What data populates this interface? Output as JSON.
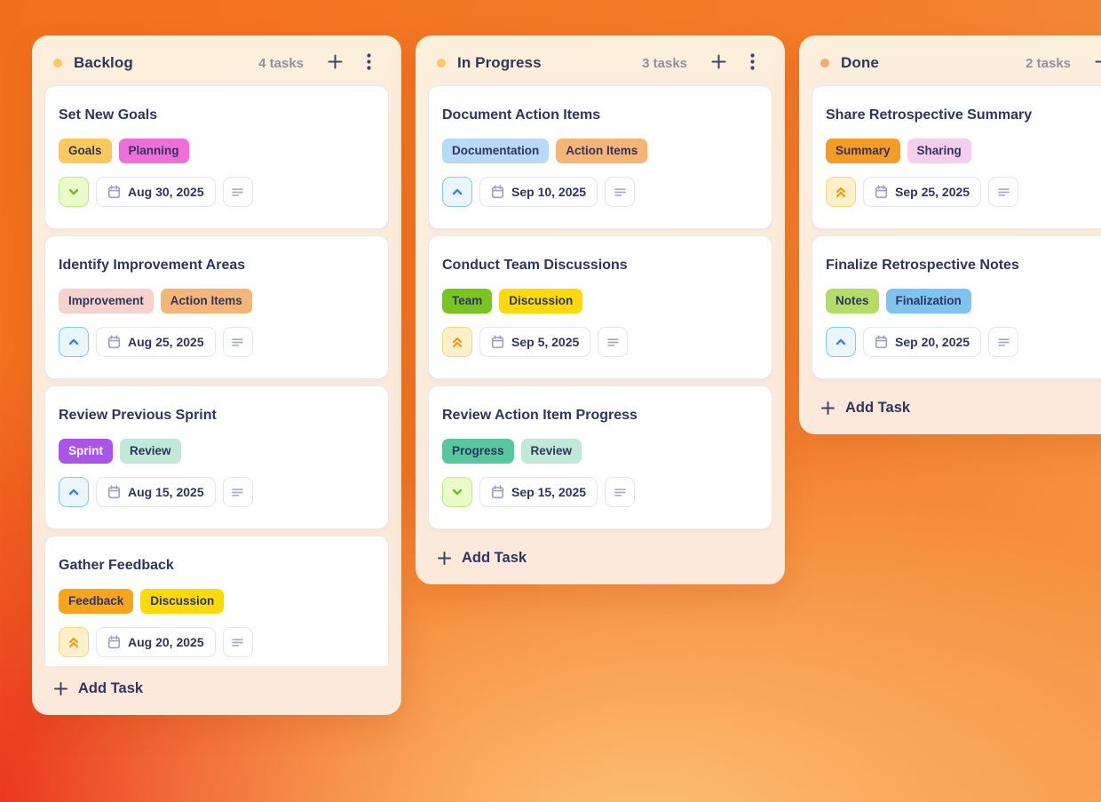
{
  "theme": {
    "background_orange": "#f26f1d",
    "background_red": "#e92f20",
    "background_light": "#fdc67d",
    "column_bg": "#fcefdc",
    "card_bg": "#ffffff",
    "text_navy": "#2e3560",
    "text_muted": "#8c91a9"
  },
  "icons": {
    "column_dot": "status-dot",
    "add_card": "plus-icon",
    "column_menu": "kebab-menu-icon",
    "calendar": "calendar-icon",
    "notes": "notes-lines-icon",
    "priority_low": "chevron-down-icon",
    "priority_medium": "chevron-up-icon",
    "priority_high": "double-chevron-up-icon",
    "add_task": "plus-icon"
  },
  "board": {
    "add_task_label": "Add Task",
    "priority_styles": {
      "low": {
        "bg": "#eafbca",
        "border": "#bdec79",
        "icon": "#76b81c"
      },
      "medium": {
        "bg": "#e9f6fe",
        "border": "#81cbf7",
        "icon": "#3f7df6"
      },
      "high": {
        "bg": "#fdf0cb",
        "border": "#f9d57c",
        "icon": "#f29a0c"
      }
    },
    "columns": [
      {
        "id": "backlog",
        "title": "Backlog",
        "count": "4 tasks",
        "dot_color": "#f8c964",
        "tasks": [
          {
            "title": "Set New Goals",
            "tags": [
              {
                "label": "Goals",
                "bg": "#f9c95e",
                "fg": "#2e3560"
              },
              {
                "label": "Planning",
                "bg": "#ee6fd8",
                "fg": "#2e3560"
              }
            ],
            "priority": "low",
            "due": "Aug 30, 2025"
          },
          {
            "title": "Identify Improvement Areas",
            "tags": [
              {
                "label": "Improvement",
                "bg": "#f7d2ca",
                "fg": "#2e3560"
              },
              {
                "label": "Action Items",
                "bg": "#f5b577",
                "fg": "#2e3560"
              }
            ],
            "priority": "medium",
            "due": "Aug 25, 2025"
          },
          {
            "title": "Review Previous Sprint",
            "tags": [
              {
                "label": "Sprint",
                "bg": "#a855e8",
                "fg": "#ffffff"
              },
              {
                "label": "Review",
                "bg": "#c0e9d9",
                "fg": "#2e3560"
              }
            ],
            "priority": "medium",
            "due": "Aug 15, 2025"
          },
          {
            "title": "Gather Feedback",
            "tags": [
              {
                "label": "Feedback",
                "bg": "#f9a41c",
                "fg": "#2e3560"
              },
              {
                "label": "Discussion",
                "bg": "#fbd90c",
                "fg": "#2e3560"
              }
            ],
            "priority": "high",
            "due": "Aug 20, 2025"
          }
        ]
      },
      {
        "id": "in-progress",
        "title": "In Progress",
        "count": "3 tasks",
        "dot_color": "#f8c964",
        "tasks": [
          {
            "title": "Document Action Items",
            "tags": [
              {
                "label": "Documentation",
                "bg": "#b7daf8",
                "fg": "#2e3560"
              },
              {
                "label": "Action Items",
                "bg": "#f5b577",
                "fg": "#2e3560"
              }
            ],
            "priority": "medium",
            "due": "Sep 10, 2025"
          },
          {
            "title": "Conduct Team Discussions",
            "tags": [
              {
                "label": "Team",
                "bg": "#7ac41f",
                "fg": "#2e3560"
              },
              {
                "label": "Discussion",
                "bg": "#fbd90c",
                "fg": "#2e3560"
              }
            ],
            "priority": "high",
            "due": "Sep 5, 2025"
          },
          {
            "title": "Review Action Item Progress",
            "tags": [
              {
                "label": "Progress",
                "bg": "#58c69e",
                "fg": "#2e3560"
              },
              {
                "label": "Review",
                "bg": "#c0e9d9",
                "fg": "#2e3560"
              }
            ],
            "priority": "low",
            "due": "Sep 15, 2025"
          }
        ]
      },
      {
        "id": "done",
        "title": "Done",
        "count": "2 tasks",
        "dot_color": "#f6a96e",
        "tasks": [
          {
            "title": "Share Retrospective Summary",
            "tags": [
              {
                "label": "Summary",
                "bg": "#f69b28",
                "fg": "#2e3560"
              },
              {
                "label": "Sharing",
                "bg": "#f7cdee",
                "fg": "#2e3560"
              }
            ],
            "priority": "high",
            "due": "Sep 25, 2025"
          },
          {
            "title": "Finalize Retrospective Notes",
            "tags": [
              {
                "label": "Notes",
                "bg": "#b5dc66",
                "fg": "#2e3560"
              },
              {
                "label": "Finalization",
                "bg": "#7fc3f0",
                "fg": "#2e3560"
              }
            ],
            "priority": "medium",
            "due": "Sep 20, 2025"
          }
        ]
      }
    ]
  }
}
